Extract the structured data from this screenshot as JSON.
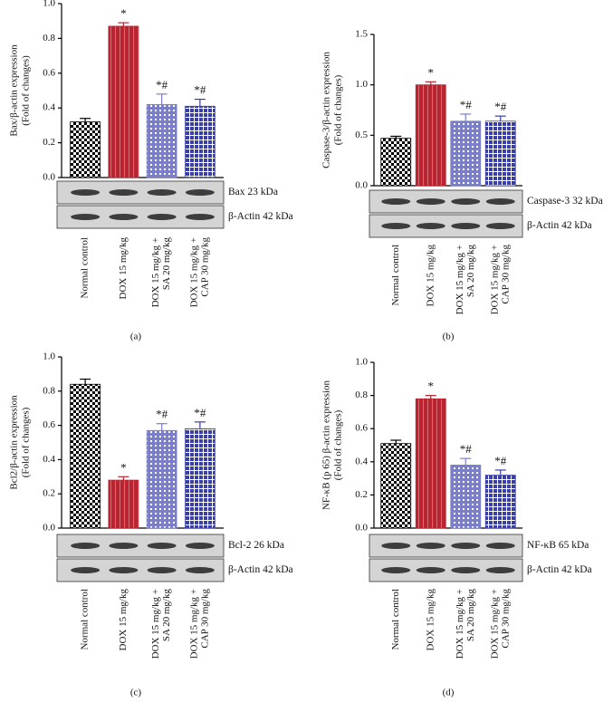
{
  "chart_data": [
    {
      "type": "bar",
      "panel_label": "(a)",
      "ylabel": [
        "Bax/β-actin expression",
        "(Fold of changes)"
      ],
      "categories": [
        "Normal control",
        "DOX 15 mg/kg",
        [
          "DOX 15 mg/kg +",
          "SA 20 mg/kg"
        ],
        [
          "DOX 15 mg/kg +",
          "CAP 30 mg/kg"
        ]
      ],
      "values": [
        0.32,
        0.87,
        0.42,
        0.41
      ],
      "errors": [
        0.02,
        0.02,
        0.06,
        0.04
      ],
      "annotations": [
        null,
        "*",
        "*#",
        "*#"
      ],
      "colors": [
        "#000000",
        "#b82430",
        "#7a7fc8",
        "#3a3fa6"
      ],
      "ylim": [
        0,
        1.0
      ],
      "yticks": [
        {
          "value": 0,
          "label": "0.0"
        },
        0.2,
        0.4,
        0.6,
        0.8,
        {
          "value": 1,
          "label": "1.0"
        }
      ],
      "blot_labels": [
        "Bax 23 kDa",
        "β-Actin 42 kDa"
      ]
    },
    {
      "type": "bar",
      "panel_label": "(b)",
      "ylabel": [
        "Caspase-3/β-actin expression",
        "(Fold of changes)"
      ],
      "categories": [
        "Normal control",
        "DOX 15 mg/kg",
        [
          "DOX 15 mg/kg +",
          "SA 20 mg/kg"
        ],
        [
          "DOX 15 mg/kg +",
          "CAP 30 mg/kg"
        ]
      ],
      "values": [
        0.47,
        1.0,
        0.64,
        0.64
      ],
      "errors": [
        0.02,
        0.03,
        0.07,
        0.05
      ],
      "annotations": [
        null,
        "*",
        "*#",
        "*#"
      ],
      "colors": [
        "#000000",
        "#b82430",
        "#7a7fc8",
        "#3a3fa6"
      ],
      "ylim": [
        0,
        1.5
      ],
      "yticks": [
        {
          "value": 0,
          "label": "0.0"
        },
        0.5,
        {
          "value": 1,
          "label": "1.0"
        },
        1.5
      ],
      "blot_labels": [
        "Caspase-3 32 kDa",
        "β-Actin 42 kDa"
      ]
    },
    {
      "type": "bar",
      "panel_label": "(c)",
      "ylabel": [
        "Bcl2/β-actin expression",
        "(Fold of changes)"
      ],
      "categories": [
        "Normal control",
        "DOX 15 mg/kg",
        [
          "DOX 15 mg/kg +",
          "SA 20 mg/kg"
        ],
        [
          "DOX 15 mg/kg +",
          "CAP 30 mg/kg"
        ]
      ],
      "values": [
        0.84,
        0.28,
        0.57,
        0.58
      ],
      "errors": [
        0.03,
        0.02,
        0.04,
        0.04
      ],
      "annotations": [
        null,
        "*",
        "*#",
        "*#"
      ],
      "colors": [
        "#000000",
        "#b82430",
        "#7a7fc8",
        "#3a3fa6"
      ],
      "ylim": [
        0,
        1.0
      ],
      "yticks": [
        {
          "value": 0,
          "label": "0.0"
        },
        0.2,
        0.4,
        0.6,
        0.8,
        {
          "value": 1,
          "label": "1.0"
        }
      ],
      "blot_labels": [
        "Bcl-2 26 kDa",
        "β-Actin 42 kDa"
      ]
    },
    {
      "type": "bar",
      "panel_label": "(d)",
      "ylabel": [
        "NF-κB (p 65) β-actin expression",
        "(Fold of changes)"
      ],
      "categories": [
        "Normal control",
        "DOX 15 mg/kg",
        [
          "DOX 15 mg/kg +",
          "SA 20 mg/kg"
        ],
        [
          "DOX 15 mg/kg +",
          "CAP 30 mg/kg"
        ]
      ],
      "values": [
        0.51,
        0.78,
        0.38,
        0.32
      ],
      "errors": [
        0.02,
        0.02,
        0.04,
        0.03
      ],
      "annotations": [
        null,
        "*",
        "*#",
        "*#"
      ],
      "colors": [
        "#000000",
        "#b82430",
        "#7a7fc8",
        "#3a3fa6"
      ],
      "ylim": [
        0,
        1.0
      ],
      "yticks": [
        {
          "value": 0,
          "label": "0.0"
        },
        0.2,
        0.4,
        0.6,
        0.8,
        {
          "value": 1,
          "label": "1.0"
        }
      ],
      "blot_labels": [
        "NF-κB 65 kDa",
        "β-Actin 42 kDa"
      ]
    }
  ]
}
